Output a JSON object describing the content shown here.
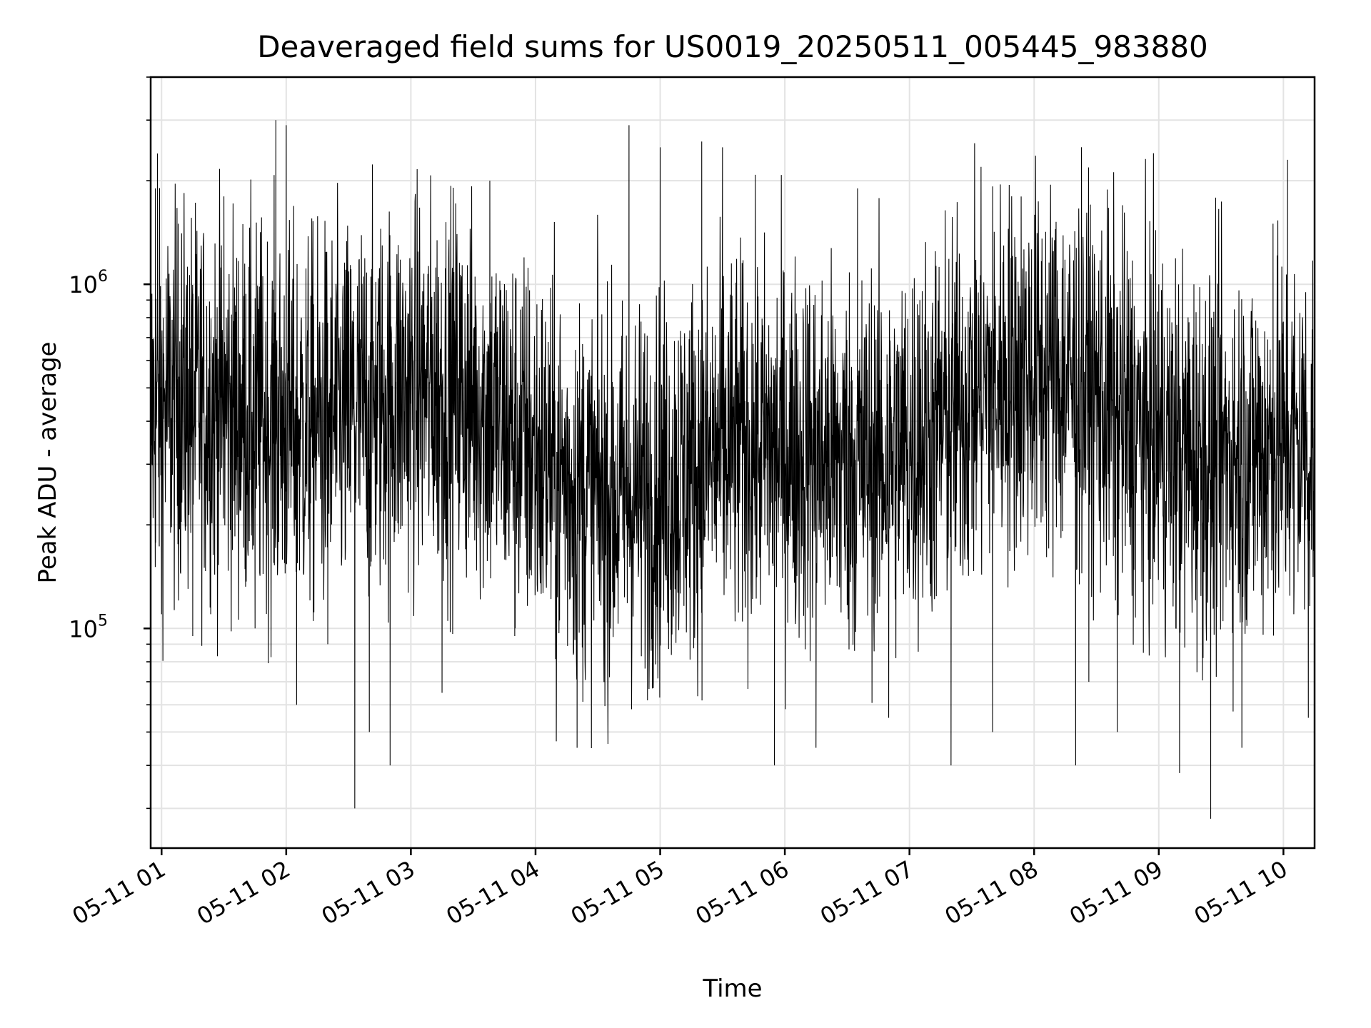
{
  "chart_data": {
    "type": "line",
    "title": "Deaveraged field sums for US0019_20250511_005445_983880",
    "xlabel": "Time",
    "ylabel": "Peak ADU - average",
    "yscale": "log",
    "x_start": "2025-05-11T00:54:45",
    "x_end": "2025-05-11T10:15:00",
    "ylim": [
      23000,
      4000000
    ],
    "x_ticks": [
      "05-11 01",
      "05-11 02",
      "05-11 03",
      "05-11 04",
      "05-11 05",
      "05-11 06",
      "05-11 07",
      "05-11 08",
      "05-11 09",
      "05-11 10"
    ],
    "x_tick_hours": [
      1,
      2,
      3,
      4,
      5,
      6,
      7,
      8,
      9,
      10
    ],
    "y_ticks": [
      {
        "base": "10",
        "exp": "5",
        "value": 100000
      },
      {
        "base": "10",
        "exp": "6",
        "value": 1000000
      }
    ],
    "grid": true,
    "line_color": "#000000",
    "series": [
      {
        "points": [
          [
            "2025-05-11T00:55:00",
            300000
          ],
          [
            "2025-05-11T00:57:00",
            1900000
          ],
          [
            "2025-05-11T00:58:00",
            2400000
          ],
          [
            "2025-05-11T01:00:00",
            110000
          ],
          [
            "2025-05-11T01:08:00",
            1500000
          ],
          [
            "2025-05-11T01:15:00",
            95000
          ],
          [
            "2025-05-11T01:30:00",
            1800000
          ],
          [
            "2025-05-11T01:45:00",
            100000
          ],
          [
            "2025-05-11T01:55:00",
            3000000
          ],
          [
            "2025-05-11T02:00:00",
            2900000
          ],
          [
            "2025-05-11T02:05:00",
            60000
          ],
          [
            "2025-05-11T02:20:00",
            90000
          ],
          [
            "2025-05-11T02:33:00",
            30000
          ],
          [
            "2025-05-11T02:40:00",
            50000
          ],
          [
            "2025-05-11T02:50:00",
            40000
          ],
          [
            "2025-05-11T03:00:00",
            450000
          ],
          [
            "2025-05-11T03:15:00",
            65000
          ],
          [
            "2025-05-11T03:38:00",
            2000000
          ],
          [
            "2025-05-11T03:50:00",
            95000
          ],
          [
            "2025-05-11T04:10:00",
            47000
          ],
          [
            "2025-05-11T04:20:00",
            45000
          ],
          [
            "2025-05-11T04:30:00",
            1100000
          ],
          [
            "2025-05-11T04:45:00",
            2900000
          ],
          [
            "2025-05-11T05:00:00",
            2500000
          ],
          [
            "2025-05-11T05:20:00",
            2600000
          ],
          [
            "2025-05-11T05:30:00",
            2500000
          ],
          [
            "2025-05-11T05:55:00",
            40000
          ],
          [
            "2025-05-11T06:15:00",
            45000
          ],
          [
            "2025-05-11T06:35:00",
            1900000
          ],
          [
            "2025-05-11T06:50:00",
            55000
          ],
          [
            "2025-05-11T07:05:00",
            900000
          ],
          [
            "2025-05-11T07:20:00",
            40000
          ],
          [
            "2025-05-11T07:40:00",
            50000
          ],
          [
            "2025-05-11T08:00:00",
            350000
          ],
          [
            "2025-05-11T08:20:00",
            40000
          ],
          [
            "2025-05-11T08:40:00",
            50000
          ],
          [
            "2025-05-11T09:00:00",
            1000000
          ],
          [
            "2025-05-11T09:10:00",
            38000
          ],
          [
            "2025-05-11T09:25:00",
            28000
          ],
          [
            "2025-05-11T09:40:00",
            45000
          ],
          [
            "2025-05-11T09:55:00",
            1500000
          ],
          [
            "2025-05-11T10:02:00",
            2300000
          ],
          [
            "2025-05-11T10:05:00",
            110000
          ],
          [
            "2025-05-11T10:12:00",
            55000
          ]
        ]
      }
    ]
  }
}
